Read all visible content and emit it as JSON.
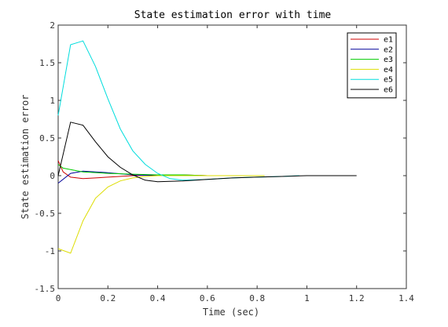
{
  "chart_data": {
    "type": "line",
    "title": "State estimation error with time",
    "xlabel": "Time (sec)",
    "ylabel": "State estimation error",
    "xlim": [
      0,
      1.4
    ],
    "ylim": [
      -1.5,
      2
    ],
    "xticks": [
      0,
      0.2,
      0.4,
      0.6,
      0.8,
      1,
      1.2,
      1.4
    ],
    "xtick_labels": [
      "0",
      "0.2",
      "0.4",
      "0.6",
      "0.8",
      "1",
      "1.2",
      "1.4"
    ],
    "yticks": [
      -1.5,
      -1,
      -0.5,
      0,
      0.5,
      1,
      1.5,
      2
    ],
    "ytick_labels": [
      "-1.5",
      "-1",
      "-0.5",
      "0",
      "0.5",
      "1",
      "1.5",
      "2"
    ],
    "grid": false,
    "legend_position": "top-right",
    "series": [
      {
        "name": "e1",
        "color": "#cc0000",
        "x": [
          0,
          0.02,
          0.05,
          0.1,
          0.15,
          0.2,
          0.3,
          0.4,
          0.5,
          0.6,
          0.7
        ],
        "y": [
          0.2,
          0.05,
          -0.02,
          -0.04,
          -0.03,
          -0.02,
          0,
          0.01,
          0.01,
          0,
          0
        ]
      },
      {
        "name": "e2",
        "color": "#000099",
        "x": [
          0,
          0.05,
          0.1,
          0.15,
          0.2,
          0.3,
          0.4,
          0.5,
          0.6,
          0.7,
          0.8
        ],
        "y": [
          -0.1,
          0.03,
          0.06,
          0.05,
          0.04,
          0.01,
          0,
          0,
          0,
          0,
          0
        ]
      },
      {
        "name": "e3",
        "color": "#00cc00",
        "x": [
          0,
          0.02,
          0.05,
          0.1,
          0.2,
          0.3,
          0.4,
          0.5,
          0.6,
          0.73
        ],
        "y": [
          0.15,
          0.1,
          0.08,
          0.05,
          0.03,
          0.02,
          0.01,
          0.01,
          0,
          0
        ]
      },
      {
        "name": "e4",
        "color": "#dddd00",
        "x": [
          0,
          0.05,
          0.1,
          0.15,
          0.2,
          0.25,
          0.3,
          0.35,
          0.4,
          0.5,
          0.6,
          0.7,
          0.83
        ],
        "y": [
          -0.97,
          -1.03,
          -0.6,
          -0.3,
          -0.15,
          -0.07,
          -0.03,
          -0.01,
          0,
          0,
          0,
          0,
          0
        ]
      },
      {
        "name": "e5",
        "color": "#00dddd",
        "x": [
          0,
          0.05,
          0.1,
          0.15,
          0.2,
          0.25,
          0.3,
          0.35,
          0.4,
          0.45,
          0.5,
          0.6,
          0.7,
          0.8,
          0.9,
          0.97
        ],
        "y": [
          0.8,
          1.74,
          1.79,
          1.45,
          1.02,
          0.62,
          0.33,
          0.15,
          0.03,
          -0.04,
          -0.06,
          -0.05,
          -0.03,
          -0.02,
          -0.01,
          0
        ]
      },
      {
        "name": "e6",
        "color": "#000000",
        "x": [
          0,
          0.05,
          0.1,
          0.15,
          0.2,
          0.25,
          0.3,
          0.35,
          0.4,
          0.5,
          0.6,
          0.7,
          0.8,
          0.9,
          1,
          1.1,
          1.2
        ],
        "y": [
          0,
          0.71,
          0.67,
          0.45,
          0.25,
          0.11,
          0.01,
          -0.06,
          -0.08,
          -0.07,
          -0.05,
          -0.03,
          -0.02,
          -0.01,
          0,
          0,
          0
        ]
      }
    ]
  }
}
